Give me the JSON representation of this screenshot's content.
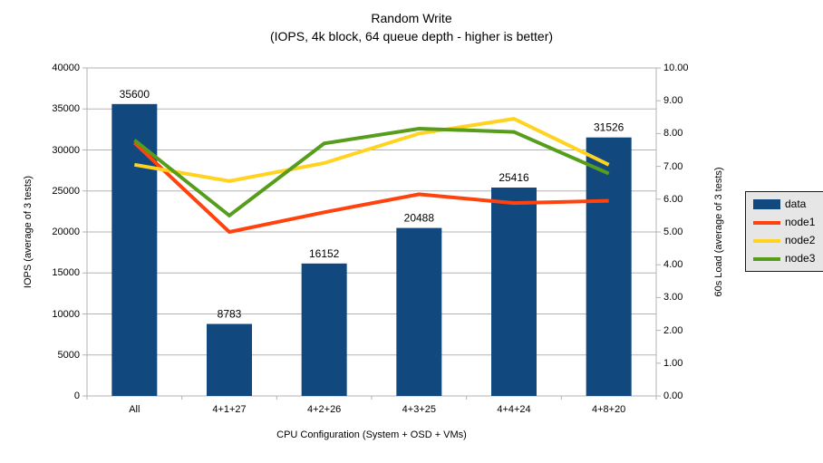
{
  "title": {
    "line1": "Random Write",
    "line2": "(IOPS, 4k block, 64 queue depth - higher is better)"
  },
  "chart_data": {
    "type": "bar+line combo",
    "categories": [
      "All",
      "4+1+27",
      "4+2+26",
      "4+3+25",
      "4+4+24",
      "4+8+20"
    ],
    "bar_series": {
      "name": "data",
      "axis": "left",
      "color": "#11497f",
      "values": [
        35600,
        8783,
        16152,
        20488,
        25416,
        31526
      ]
    },
    "line_series": [
      {
        "name": "node1",
        "axis": "right",
        "color": "#ff420e",
        "values": [
          7.72,
          5.0,
          5.6,
          6.15,
          5.88,
          5.95
        ]
      },
      {
        "name": "node2",
        "axis": "right",
        "color": "#ffd320",
        "values": [
          7.05,
          6.55,
          7.1,
          8.0,
          8.45,
          7.05
        ]
      },
      {
        "name": "node3",
        "axis": "right",
        "color": "#579d1c",
        "values": [
          7.8,
          5.5,
          7.7,
          8.15,
          8.05,
          6.78
        ]
      }
    ],
    "axes": {
      "left": {
        "label": "IOPS (average of 3 tests)",
        "min": 0,
        "max": 40000,
        "ticks": [
          "0",
          "5000",
          "10000",
          "15000",
          "20000",
          "25000",
          "30000",
          "35000",
          "40000"
        ]
      },
      "right": {
        "label": "60s Load (average of 3 tests)",
        "min": 0,
        "max": 10,
        "ticks": [
          "0.00",
          "1.00",
          "2.00",
          "3.00",
          "4.00",
          "5.00",
          "6.00",
          "7.00",
          "8.00",
          "9.00",
          "10.00"
        ]
      },
      "x": {
        "label": "CPU Configuration (System + OSD + VMs)"
      }
    },
    "grid": "horizontal gridlines at every left-axis tick (5000 IOPS)",
    "legend": {
      "position": "right",
      "items": [
        {
          "label": "data",
          "type": "bar",
          "color": "#11497f"
        },
        {
          "label": "node1",
          "type": "line",
          "color": "#ff420e"
        },
        {
          "label": "node2",
          "type": "line",
          "color": "#ffd320"
        },
        {
          "label": "node3",
          "type": "line",
          "color": "#579d1c"
        }
      ]
    }
  },
  "colors": {
    "background": "#ffffff",
    "gridline": "#b3b3b3",
    "axis_line": "#b3b3b3",
    "text": "#000000",
    "legend_bg": "#e6e6e6",
    "legend_border": "#1a1a1a"
  }
}
